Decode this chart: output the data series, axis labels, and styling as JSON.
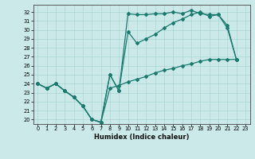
{
  "xlabel": "Humidex (Indice chaleur)",
  "background_color": "#cce9e9",
  "grid_color": "#aad4d4",
  "line_color": "#1a7a6e",
  "xlim": [
    -0.5,
    23.5
  ],
  "ylim": [
    19.5,
    32.8
  ],
  "xticks": [
    0,
    1,
    2,
    3,
    4,
    5,
    6,
    7,
    8,
    9,
    10,
    11,
    12,
    13,
    14,
    15,
    16,
    17,
    18,
    19,
    20,
    21,
    22,
    23
  ],
  "yticks": [
    20,
    21,
    22,
    23,
    24,
    25,
    26,
    27,
    28,
    29,
    30,
    31,
    32
  ],
  "series1_x": [
    0,
    1,
    2,
    3,
    4,
    5,
    6,
    7,
    8,
    9,
    10,
    11,
    12,
    13,
    14,
    15,
    16,
    17,
    18,
    19,
    20,
    21,
    22
  ],
  "series1_y": [
    24.0,
    23.5,
    24.0,
    23.2,
    22.5,
    21.5,
    20.0,
    19.7,
    25.0,
    23.2,
    31.8,
    31.7,
    31.7,
    31.8,
    31.8,
    32.0,
    31.8,
    32.2,
    31.8,
    31.7,
    31.7,
    30.5,
    26.7
  ],
  "series2_x": [
    0,
    1,
    2,
    3,
    4,
    5,
    6,
    7,
    8,
    9,
    10,
    11,
    12,
    13,
    14,
    15,
    16,
    17,
    18,
    19,
    20,
    21,
    22
  ],
  "series2_y": [
    24.0,
    23.5,
    24.0,
    23.2,
    22.5,
    21.5,
    20.0,
    19.7,
    25.0,
    23.2,
    29.8,
    28.5,
    29.0,
    29.5,
    30.2,
    30.8,
    31.2,
    31.7,
    32.0,
    31.5,
    31.7,
    30.2,
    26.7
  ],
  "series3_x": [
    0,
    1,
    2,
    3,
    4,
    5,
    6,
    7,
    8,
    9,
    10,
    11,
    12,
    13,
    14,
    15,
    16,
    17,
    18,
    19,
    20,
    21,
    22
  ],
  "series3_y": [
    24.0,
    23.5,
    24.0,
    23.2,
    22.5,
    21.5,
    20.0,
    19.7,
    23.5,
    23.8,
    24.2,
    24.5,
    24.8,
    25.2,
    25.5,
    25.7,
    26.0,
    26.2,
    26.5,
    26.7,
    26.7,
    26.7,
    26.7
  ]
}
